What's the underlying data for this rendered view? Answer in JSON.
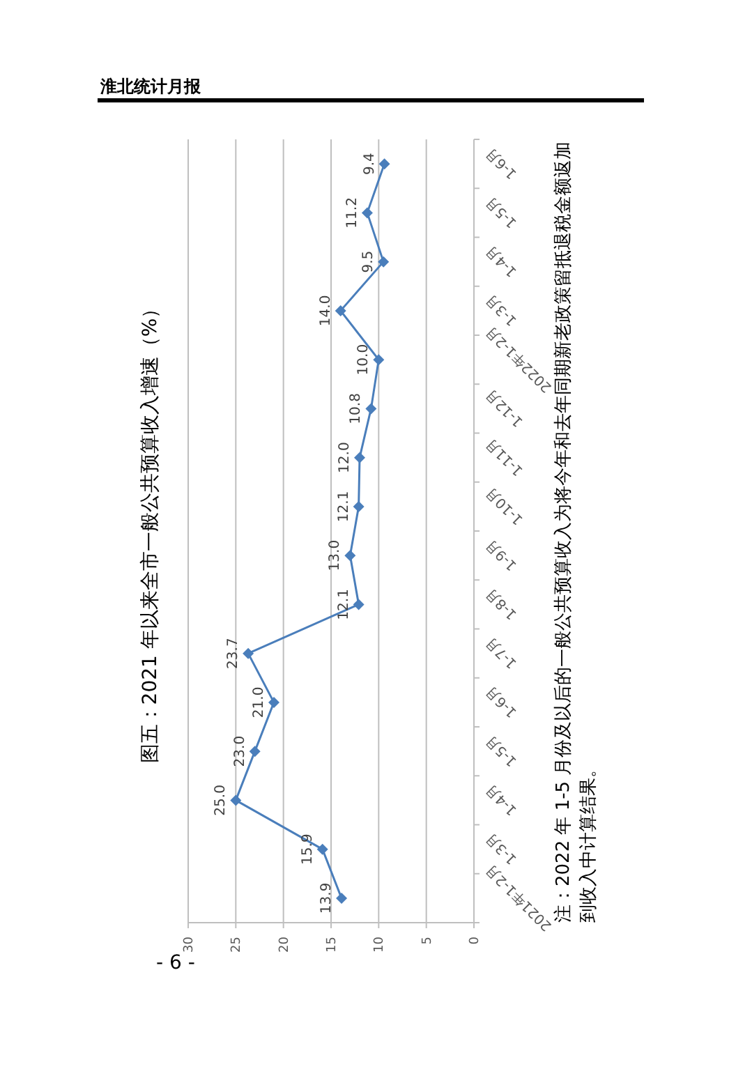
{
  "chart_data": {
    "type": "line",
    "title": "图五：2021 年以来全市一般公共预算收入增速（%）",
    "orientation": "horizontal",
    "categories": [
      "1-6月",
      "1-5月",
      "1-4月",
      "1-3月",
      "2022年1-2月",
      "1-12月",
      "1-11月",
      "1-10月",
      "1-9月",
      "1-8月",
      "1-7月",
      "1-6月",
      "1-5月",
      "1-4月",
      "1-3月",
      "2021年1-2月"
    ],
    "values": [
      9.4,
      11.2,
      9.5,
      14.0,
      10.0,
      10.8,
      12.0,
      12.1,
      13.0,
      12.1,
      23.7,
      21.0,
      23.0,
      25.0,
      15.9,
      13.9
    ],
    "value_labels": [
      "9.4",
      "11.2",
      "9.5",
      "14.0",
      "10.0",
      "10.8",
      "12.0",
      "12.1",
      "13.0",
      "12.1",
      "23.7",
      "21.0",
      "23.0",
      "25.0",
      "15.9",
      "13.9"
    ],
    "color": "#4a7ebb",
    "xlim": [
      30,
      0
    ],
    "xticks": [
      0,
      5,
      10,
      15,
      20,
      25,
      30
    ],
    "grid": "x",
    "marker": "diamond",
    "annotations": [
      "注：2022 年 1-5 月份及以后的一般公共预算收入为将今年和去年同期新老政策留抵退税金额返加到收入中计算结果。",
      "淮北统计月报",
      "- 6 -"
    ]
  }
}
